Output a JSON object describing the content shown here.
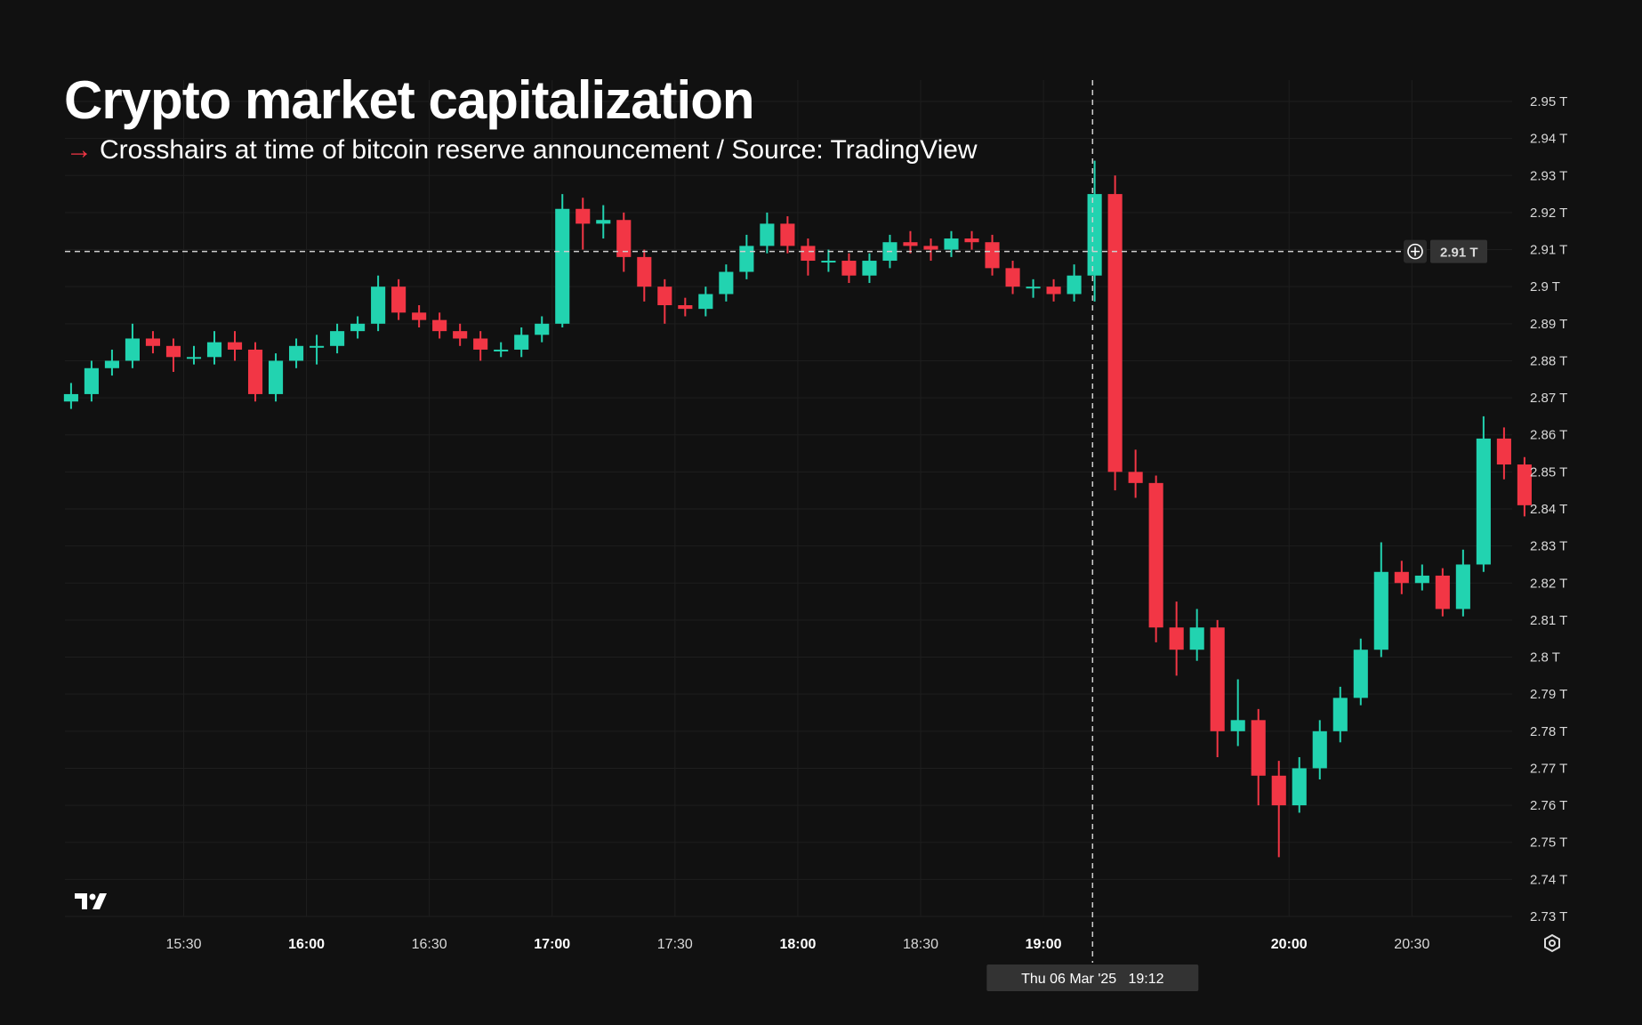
{
  "title": "Crypto market capitalization",
  "subtitle": {
    "arrow": "→",
    "text": "Crosshairs at time of bitcoin reserve announcement / Source: TradingView"
  },
  "colors": {
    "background": "#111111",
    "up": "#22d3b0",
    "down": "#f23645",
    "grid": "#1e1e1e",
    "crosshair": "#cfcfcf"
  },
  "icons": {
    "logo": "tradingview-logo",
    "settings": "gear-icon",
    "crosshair": "plus-circle-icon"
  },
  "chart_data": {
    "type": "candlestick",
    "title": "Crypto market capitalization",
    "ylabel": "",
    "xlabel": "",
    "ylim": [
      2.73,
      2.95
    ],
    "xlim": [
      "15:01",
      "20:56"
    ],
    "y_ticks": [
      "2.95 T",
      "2.94 T",
      "2.93 T",
      "2.92 T",
      "2.91 T",
      "2.9 T",
      "2.89 T",
      "2.88 T",
      "2.87 T",
      "2.86 T",
      "2.85 T",
      "2.84 T",
      "2.83 T",
      "2.82 T",
      "2.81 T",
      "2.8 T",
      "2.79 T",
      "2.78 T",
      "2.77 T",
      "2.76 T",
      "2.75 T",
      "2.74 T",
      "2.73 T"
    ],
    "y_tick_values": [
      2.95,
      2.94,
      2.93,
      2.92,
      2.91,
      2.9,
      2.89,
      2.88,
      2.87,
      2.86,
      2.85,
      2.84,
      2.83,
      2.82,
      2.81,
      2.8,
      2.79,
      2.78,
      2.77,
      2.76,
      2.75,
      2.74,
      2.73
    ],
    "x_ticks": [
      {
        "label": "15:30",
        "bold": false
      },
      {
        "label": "16:00",
        "bold": true
      },
      {
        "label": "16:30",
        "bold": false
      },
      {
        "label": "17:00",
        "bold": true
      },
      {
        "label": "17:30",
        "bold": false
      },
      {
        "label": "18:00",
        "bold": true
      },
      {
        "label": "18:30",
        "bold": false
      },
      {
        "label": "19:00",
        "bold": true
      },
      {
        "label": "20:00",
        "bold": true
      },
      {
        "label": "20:30",
        "bold": false
      }
    ],
    "grid": true,
    "crosshair": {
      "time": "19:12",
      "value": 2.9095,
      "value_label": "2.91 T",
      "time_label": "Thu 06 Mar '25   19:12"
    },
    "candles_columns": [
      "time",
      "open",
      "high",
      "low",
      "close"
    ],
    "candles": [
      [
        "15:00",
        2.869,
        2.874,
        2.867,
        2.871
      ],
      [
        "15:05",
        2.871,
        2.88,
        2.869,
        2.878
      ],
      [
        "15:10",
        2.878,
        2.883,
        2.876,
        2.88
      ],
      [
        "15:15",
        2.88,
        2.89,
        2.878,
        2.886
      ],
      [
        "15:20",
        2.886,
        2.888,
        2.882,
        2.884
      ],
      [
        "15:25",
        2.884,
        2.886,
        2.877,
        2.881
      ],
      [
        "15:30",
        2.881,
        2.884,
        2.879,
        2.881
      ],
      [
        "15:35",
        2.881,
        2.888,
        2.879,
        2.885
      ],
      [
        "15:40",
        2.885,
        2.888,
        2.88,
        2.883
      ],
      [
        "15:45",
        2.883,
        2.885,
        2.869,
        2.871
      ],
      [
        "15:50",
        2.871,
        2.882,
        2.869,
        2.88
      ],
      [
        "15:55",
        2.88,
        2.886,
        2.878,
        2.884
      ],
      [
        "16:00",
        2.884,
        2.887,
        2.879,
        2.884
      ],
      [
        "16:05",
        2.884,
        2.89,
        2.882,
        2.888
      ],
      [
        "16:10",
        2.888,
        2.892,
        2.886,
        2.89
      ],
      [
        "16:15",
        2.89,
        2.903,
        2.888,
        2.9
      ],
      [
        "16:20",
        2.9,
        2.902,
        2.891,
        2.893
      ],
      [
        "16:25",
        2.893,
        2.895,
        2.889,
        2.891
      ],
      [
        "16:30",
        2.891,
        2.893,
        2.886,
        2.888
      ],
      [
        "16:35",
        2.888,
        2.89,
        2.884,
        2.886
      ],
      [
        "16:40",
        2.886,
        2.888,
        2.88,
        2.883
      ],
      [
        "16:45",
        2.883,
        2.885,
        2.881,
        2.883
      ],
      [
        "16:50",
        2.883,
        2.889,
        2.881,
        2.887
      ],
      [
        "16:55",
        2.887,
        2.892,
        2.885,
        2.89
      ],
      [
        "17:00",
        2.89,
        2.925,
        2.889,
        2.921
      ],
      [
        "17:05",
        2.921,
        2.924,
        2.91,
        2.917
      ],
      [
        "17:10",
        2.917,
        2.922,
        2.913,
        2.918
      ],
      [
        "17:15",
        2.918,
        2.92,
        2.904,
        2.908
      ],
      [
        "17:20",
        2.908,
        2.91,
        2.896,
        2.9
      ],
      [
        "17:25",
        2.9,
        2.902,
        2.89,
        2.895
      ],
      [
        "17:30",
        2.895,
        2.897,
        2.892,
        2.894
      ],
      [
        "17:35",
        2.894,
        2.9,
        2.892,
        2.898
      ],
      [
        "17:40",
        2.898,
        2.906,
        2.896,
        2.904
      ],
      [
        "17:45",
        2.904,
        2.914,
        2.902,
        2.911
      ],
      [
        "17:50",
        2.911,
        2.92,
        2.909,
        2.917
      ],
      [
        "17:55",
        2.917,
        2.919,
        2.909,
        2.911
      ],
      [
        "18:00",
        2.911,
        2.913,
        2.903,
        2.907
      ],
      [
        "18:05",
        2.907,
        2.91,
        2.904,
        2.907
      ],
      [
        "18:10",
        2.907,
        2.909,
        2.901,
        2.903
      ],
      [
        "18:15",
        2.903,
        2.909,
        2.901,
        2.907
      ],
      [
        "18:20",
        2.907,
        2.914,
        2.905,
        2.912
      ],
      [
        "18:25",
        2.912,
        2.915,
        2.909,
        2.911
      ],
      [
        "18:30",
        2.911,
        2.913,
        2.907,
        2.91
      ],
      [
        "18:35",
        2.91,
        2.915,
        2.908,
        2.913
      ],
      [
        "18:40",
        2.913,
        2.915,
        2.91,
        2.912
      ],
      [
        "18:45",
        2.912,
        2.914,
        2.903,
        2.905
      ],
      [
        "18:50",
        2.905,
        2.907,
        2.898,
        2.9
      ],
      [
        "18:55",
        2.9,
        2.902,
        2.897,
        2.9
      ],
      [
        "19:00",
        2.9,
        2.902,
        2.896,
        2.898
      ],
      [
        "19:05",
        2.898,
        2.906,
        2.896,
        2.903
      ],
      [
        "19:10",
        2.903,
        2.934,
        2.896,
        2.925
      ],
      [
        "19:15",
        2.925,
        2.93,
        2.845,
        2.85
      ],
      [
        "19:20",
        2.85,
        2.856,
        2.843,
        2.847
      ],
      [
        "19:25",
        2.847,
        2.849,
        2.804,
        2.808
      ],
      [
        "19:30",
        2.808,
        2.815,
        2.795,
        2.802
      ],
      [
        "19:35",
        2.802,
        2.813,
        2.799,
        2.808
      ],
      [
        "19:40",
        2.808,
        2.81,
        2.773,
        2.78
      ],
      [
        "19:45",
        2.78,
        2.794,
        2.776,
        2.783
      ],
      [
        "19:50",
        2.783,
        2.786,
        2.76,
        2.768
      ],
      [
        "19:55",
        2.768,
        2.772,
        2.746,
        2.76
      ],
      [
        "20:00",
        2.76,
        2.773,
        2.758,
        2.77
      ],
      [
        "20:05",
        2.77,
        2.783,
        2.767,
        2.78
      ],
      [
        "20:10",
        2.78,
        2.792,
        2.777,
        2.789
      ],
      [
        "20:15",
        2.789,
        2.805,
        2.787,
        2.802
      ],
      [
        "20:20",
        2.802,
        2.831,
        2.8,
        2.823
      ],
      [
        "20:25",
        2.823,
        2.826,
        2.817,
        2.82
      ],
      [
        "20:30",
        2.82,
        2.825,
        2.818,
        2.822
      ],
      [
        "20:35",
        2.822,
        2.824,
        2.811,
        2.813
      ],
      [
        "20:40",
        2.813,
        2.829,
        2.811,
        2.825
      ],
      [
        "20:45",
        2.825,
        2.865,
        2.823,
        2.859
      ],
      [
        "20:50",
        2.859,
        2.862,
        2.848,
        2.852
      ],
      [
        "20:55",
        2.852,
        2.854,
        2.838,
        2.841
      ]
    ]
  }
}
